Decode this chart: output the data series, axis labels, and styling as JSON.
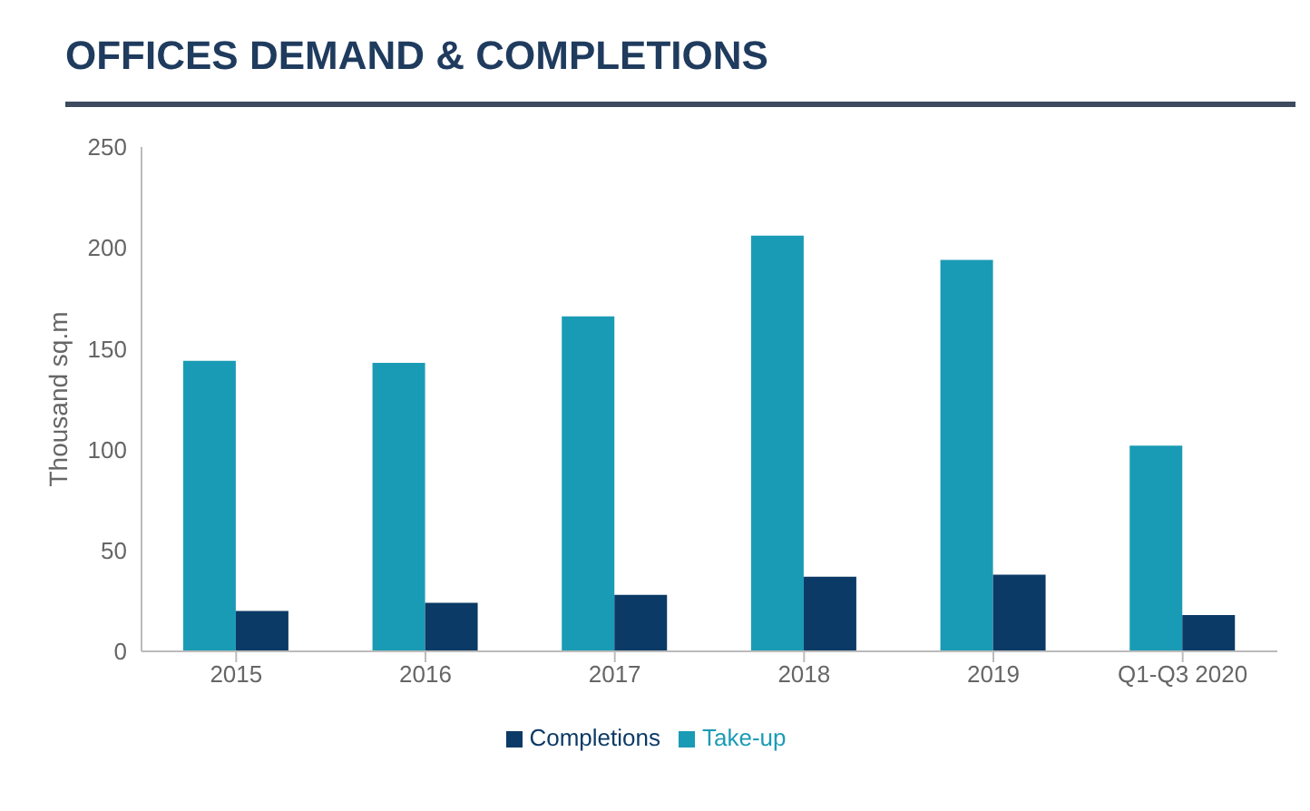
{
  "chart_data": {
    "type": "bar",
    "title": "OFFICES DEMAND & COMPLETIONS",
    "ylabel": "Thousand sq.m",
    "categories": [
      "2015",
      "2016",
      "2017",
      "2018",
      "2019",
      "Q1-Q3 2020"
    ],
    "series": [
      {
        "name": "Take-up",
        "color": "#1a9bb5",
        "values": [
          144,
          143,
          166,
          206,
          194,
          102
        ]
      },
      {
        "name": "Completions",
        "color": "#0b3a66",
        "values": [
          20,
          24,
          28,
          37,
          38,
          18
        ]
      }
    ],
    "ylim": [
      0,
      250
    ],
    "yticks": [
      0,
      50,
      100,
      150,
      200,
      250
    ],
    "grid": false,
    "legend": "bottom"
  }
}
